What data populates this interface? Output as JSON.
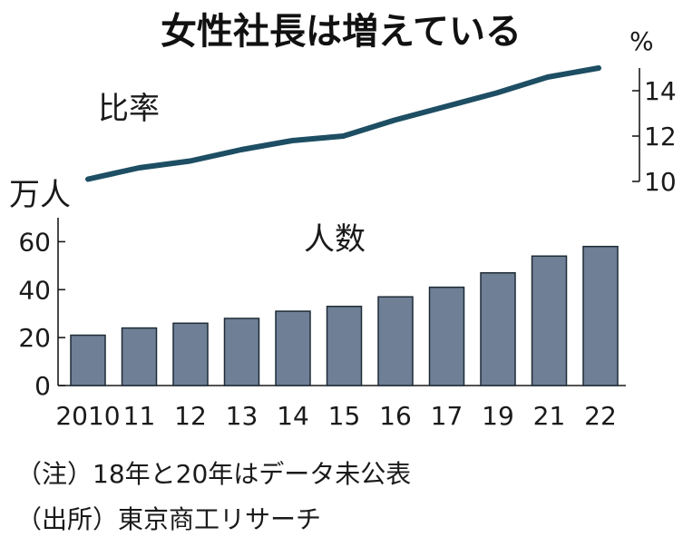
{
  "title": "女性社長は増えている",
  "notes": [
    "（注）18年と20年はデータ未公表",
    "（出所）東京商工リサーチ"
  ],
  "chart_data": [
    {
      "type": "line",
      "label": "比率",
      "unit": "%",
      "x": [
        "2010",
        "11",
        "12",
        "13",
        "14",
        "15",
        "16",
        "17",
        "19",
        "21",
        "22"
      ],
      "values": [
        10.1,
        10.6,
        10.9,
        11.4,
        11.8,
        12.0,
        12.7,
        13.3,
        13.9,
        14.6,
        15.0
      ],
      "ylim": [
        10,
        15
      ],
      "yticks": [
        "10",
        "12",
        "14"
      ],
      "axis_side": "right"
    },
    {
      "type": "bar",
      "label": "人数",
      "unit": "万人",
      "categories": [
        "2010",
        "11",
        "12",
        "13",
        "14",
        "15",
        "16",
        "17",
        "19",
        "21",
        "22"
      ],
      "values": [
        21,
        24,
        26,
        28,
        31,
        33,
        37,
        41,
        47,
        54,
        58
      ],
      "ylim": [
        0,
        70
      ],
      "yticks": [
        "0",
        "20",
        "40",
        "60"
      ],
      "axis_side": "left"
    }
  ]
}
